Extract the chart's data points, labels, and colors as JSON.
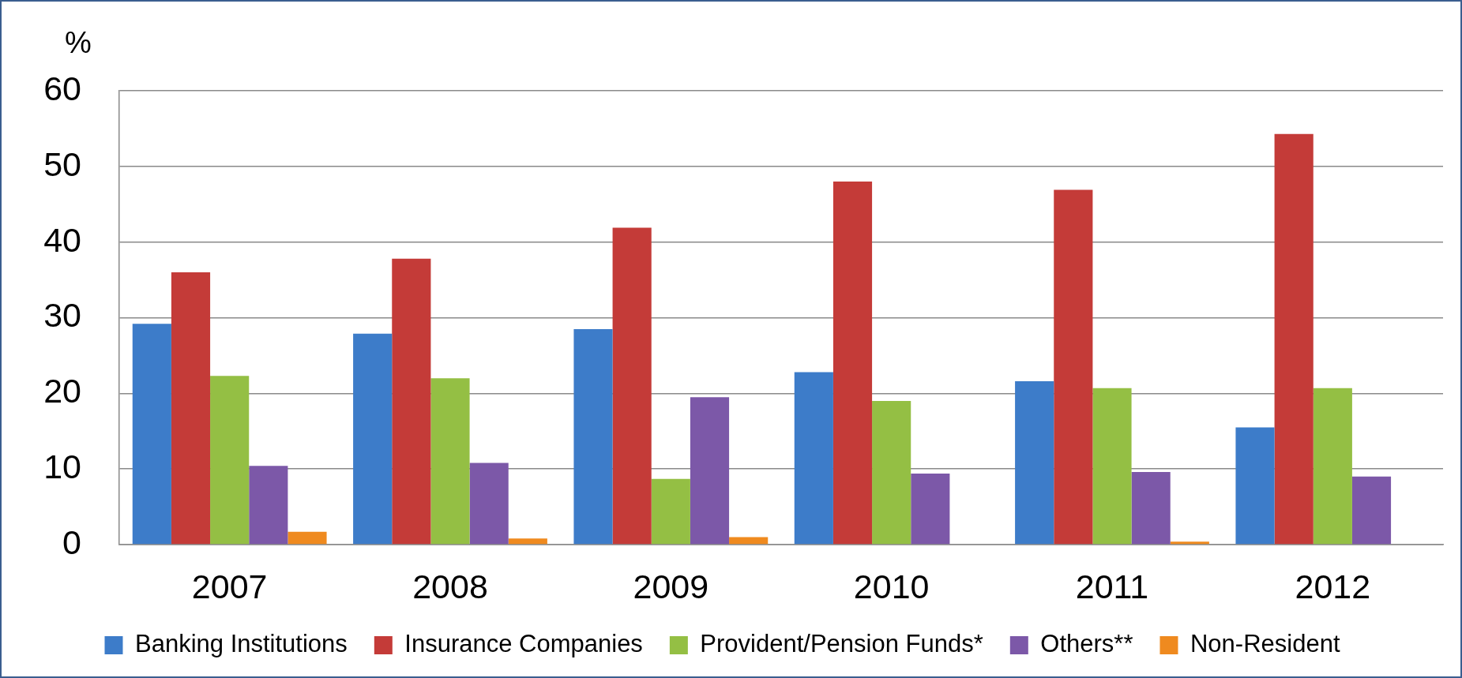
{
  "chart_data": {
    "type": "bar",
    "ylabel": "%",
    "categories": [
      "2007",
      "2008",
      "2009",
      "2010",
      "2011",
      "2012"
    ],
    "series": [
      {
        "name": "Banking Institutions",
        "color": "#3d7cc9",
        "values": [
          29.2,
          27.9,
          28.5,
          22.8,
          21.6,
          15.5
        ]
      },
      {
        "name": "Insurance Companies",
        "color": "#c43b38",
        "values": [
          36.0,
          37.8,
          41.9,
          48.0,
          46.9,
          54.3
        ]
      },
      {
        "name": "Provident/Pension Funds*",
        "color": "#94bf44",
        "values": [
          22.3,
          22.0,
          8.7,
          19.0,
          20.7,
          20.7
        ]
      },
      {
        "name": "Others**",
        "color": "#7c58a8",
        "values": [
          10.4,
          10.8,
          19.5,
          9.4,
          9.6,
          9.0
        ]
      },
      {
        "name": "Non-Resident",
        "color": "#ef8a1f",
        "values": [
          1.7,
          0.8,
          1.0,
          null,
          0.4,
          null
        ]
      }
    ],
    "ylim": [
      0,
      60
    ],
    "yticks": [
      0,
      10,
      20,
      30,
      40,
      50,
      60
    ],
    "grid": "y",
    "legend": "bottom"
  }
}
